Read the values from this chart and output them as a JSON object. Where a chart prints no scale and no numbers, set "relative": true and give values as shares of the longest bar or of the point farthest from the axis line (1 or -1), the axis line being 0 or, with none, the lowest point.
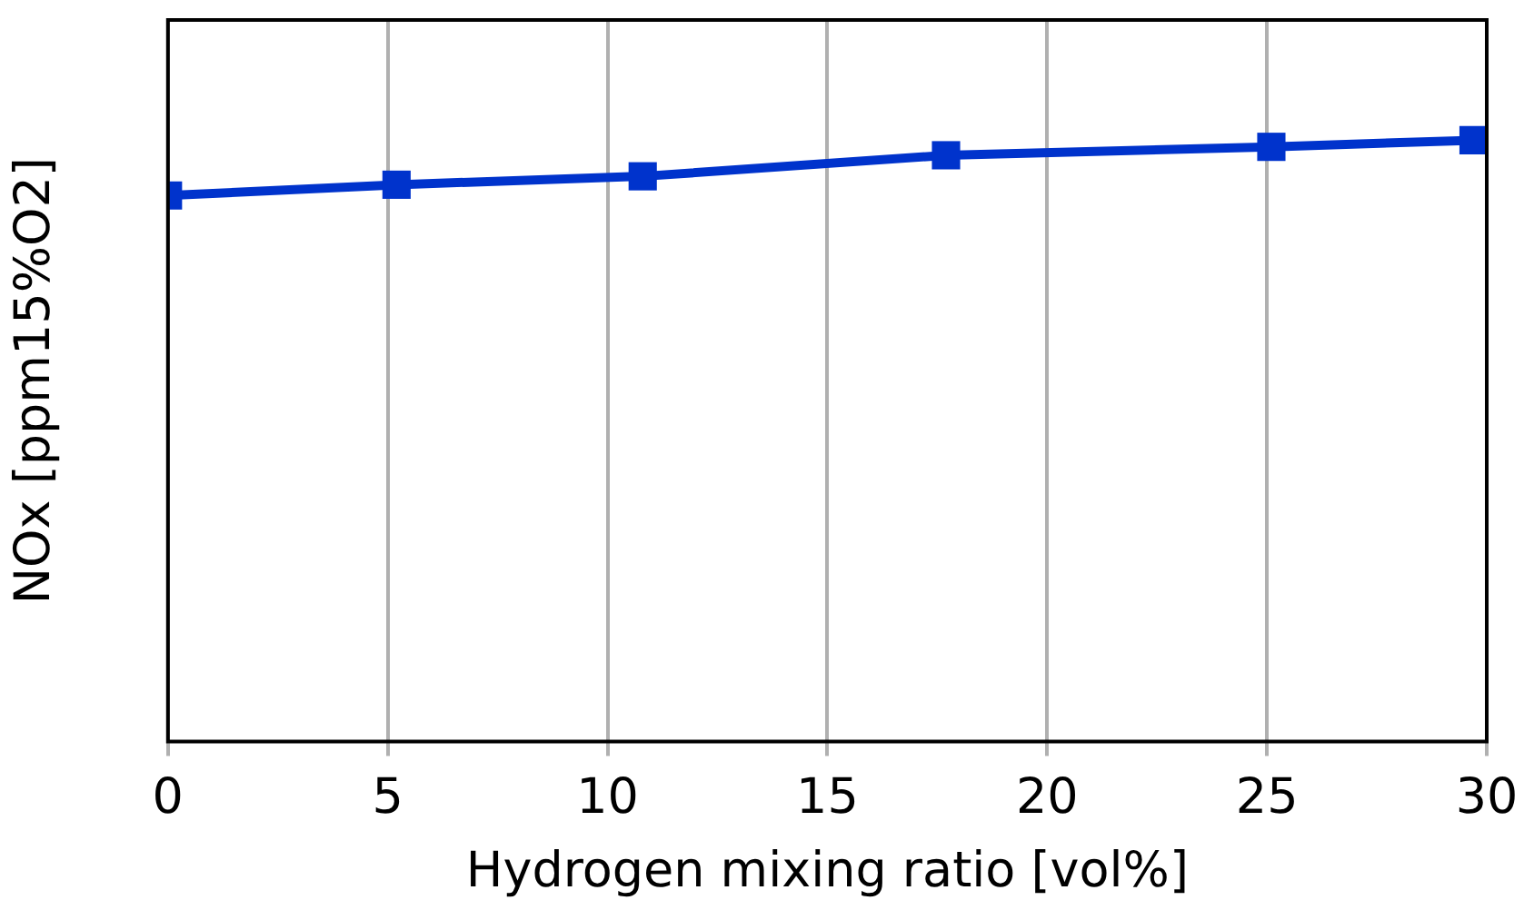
{
  "chart_data": {
    "type": "line",
    "xlabel": "Hydrogen mixing ratio [vol%]",
    "ylabel": "NOx [ppm15%O2]",
    "relative": true,
    "x": [
      0,
      5.2,
      10.8,
      17.7,
      25.1,
      29.7
    ],
    "xlim": [
      0,
      30
    ],
    "xticks": [
      0,
      5,
      10,
      15,
      20,
      25,
      30
    ],
    "series": [
      {
        "color": "#0033cc",
        "values": [
          0.908,
          0.926,
          0.94,
          0.975,
          0.989,
          1
        ]
      }
    ],
    "grid": "x",
    "marker": "square",
    "line_style": "solid",
    "legend": false
  }
}
